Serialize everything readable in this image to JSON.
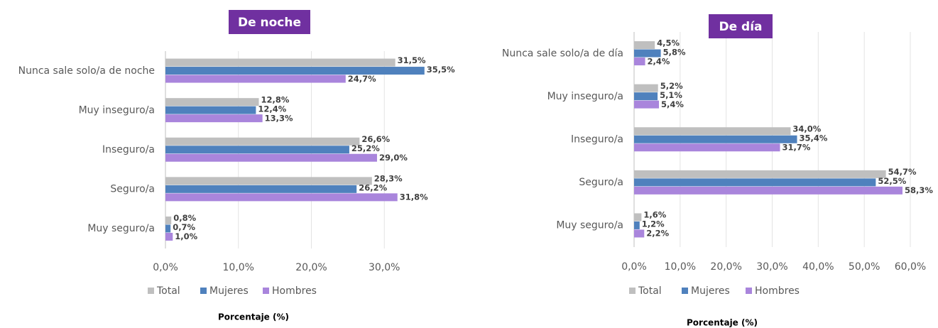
{
  "chart_data": [
    {
      "type": "bar",
      "orientation": "horizontal",
      "title": "De noche",
      "x_label": "Porcentaje (%)",
      "categories": [
        "Nunca sale solo/a de noche",
        "Muy inseguro/a",
        "Inseguro/a",
        "Seguro/a",
        "Muy seguro/a"
      ],
      "series": [
        {
          "name": "Total",
          "color": "#bfbfbf",
          "values": [
            31.5,
            12.8,
            26.6,
            28.3,
            0.8
          ],
          "value_labels": [
            "31,5%",
            "12,8%",
            "26,6%",
            "28,3%",
            "0,8%"
          ]
        },
        {
          "name": "Mujeres",
          "color": "#4f81bd",
          "values": [
            35.5,
            12.4,
            25.2,
            26.2,
            0.7
          ],
          "value_labels": [
            "35,5%",
            "12,4%",
            "25,2%",
            "26,2%",
            "0,7%"
          ]
        },
        {
          "name": "Hombres",
          "color": "#a985dc",
          "values": [
            24.7,
            13.3,
            29.0,
            31.8,
            1.0
          ],
          "value_labels": [
            "24,7%",
            "13,3%",
            "29,0%",
            "31,8%",
            "1,0%"
          ]
        }
      ],
      "xlim": [
        0,
        40
      ],
      "xticks": [
        {
          "value": 0,
          "label": "0,0%"
        },
        {
          "value": 10,
          "label": "10,0%"
        },
        {
          "value": 20,
          "label": "20,0%"
        },
        {
          "value": 30,
          "label": "30,0%"
        }
      ],
      "grid": true,
      "legend": "bottom"
    },
    {
      "type": "bar",
      "orientation": "horizontal",
      "title": "De día",
      "x_label": "Porcentaje (%)",
      "categories": [
        "Nunca sale solo/a de día",
        "Muy inseguro/a",
        "Inseguro/a",
        "Seguro/a",
        "Muy seguro/a"
      ],
      "series": [
        {
          "name": "Total",
          "color": "#bfbfbf",
          "values": [
            4.5,
            5.2,
            34.0,
            54.7,
            1.6
          ],
          "value_labels": [
            "4,5%",
            "5,2%",
            "34,0%",
            "54,7%",
            "1,6%"
          ]
        },
        {
          "name": "Mujeres",
          "color": "#4f81bd",
          "values": [
            5.8,
            5.1,
            35.4,
            52.5,
            1.2
          ],
          "value_labels": [
            "5,8%",
            "5,1%",
            "35,4%",
            "52,5%",
            "1,2%"
          ]
        },
        {
          "name": "Hombres",
          "color": "#a985dc",
          "values": [
            2.4,
            5.4,
            31.7,
            58.3,
            2.2
          ],
          "value_labels": [
            "2,4%",
            "5,4%",
            "31,7%",
            "58,3%",
            "2,2%"
          ]
        }
      ],
      "xlim": [
        0,
        60
      ],
      "xticks": [
        {
          "value": 0,
          "label": "0,0%"
        },
        {
          "value": 10,
          "label": "10,0%"
        },
        {
          "value": 20,
          "label": "20,0%"
        },
        {
          "value": 30,
          "label": "30,0%"
        },
        {
          "value": 40,
          "label": "40,0%"
        },
        {
          "value": 50,
          "label": "50,0%"
        },
        {
          "value": 60,
          "label": "60,0%"
        }
      ],
      "grid": true,
      "legend": "bottom"
    }
  ]
}
